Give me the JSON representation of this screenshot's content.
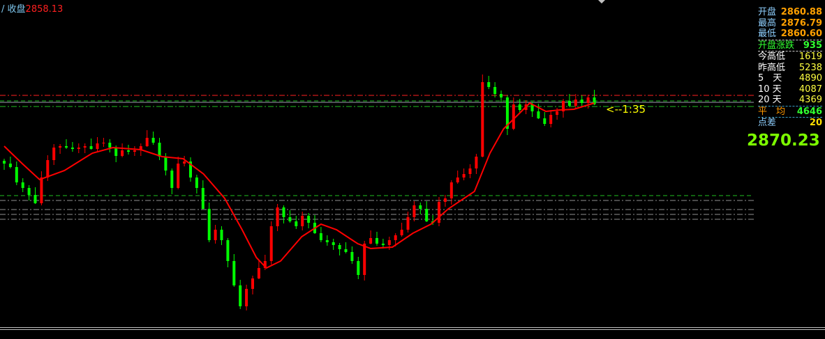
{
  "header": {
    "prefix": "/",
    "label": "收盘",
    "value": "2858.13"
  },
  "panel": {
    "open": {
      "label": "开盘",
      "value": "2860.88"
    },
    "high": {
      "label": "最高",
      "value": "2876.79"
    },
    "low": {
      "label": "最低",
      "value": "2860.60"
    },
    "open_change": {
      "label": "开盘涨跌",
      "value": "935"
    },
    "today_range": {
      "label": "今高低",
      "value": "1619"
    },
    "yest_range": {
      "label": "昨高低",
      "value": "5238"
    },
    "d5": {
      "label": "5　天",
      "value": "4890"
    },
    "d10": {
      "label": "10 天",
      "value": "4087"
    },
    "d20": {
      "label": "20 天",
      "value": "4369"
    },
    "avg": {
      "label": "平　均",
      "value": "4646"
    },
    "points": {
      "label": "点差",
      "value": "20"
    },
    "current": "2870.23"
  },
  "annotation": "<--1:35",
  "chart_data": {
    "type": "candlestick",
    "colors": {
      "up": "#ff0000",
      "down": "#00ff00",
      "ma": "#ff0000",
      "bg": "#000000"
    },
    "close": [
      2868.25,
      2868.0,
      2866.9,
      2866.5,
      2866.0,
      2865.4,
      2867.25,
      2868.5,
      2869.4,
      2869.5,
      2869.4,
      2869.3,
      2869.4,
      2869.5,
      2869.3,
      2869.7,
      2869.75,
      2869.4,
      2868.8,
      2869.2,
      2869.1,
      2869.2,
      2869.5,
      2870.1,
      2869.75,
      2868.75,
      2867.75,
      2866.5,
      2868.25,
      2868.4,
      2867.25,
      2866.5,
      2865.0,
      2862.75,
      2863.5,
      2862.75,
      2861.25,
      2859.5,
      2858.0,
      2859.25,
      2860.0,
      2860.75,
      2861.25,
      2863.75,
      2865.1,
      2864.4,
      2864.1,
      2863.75,
      2864.5,
      2864.0,
      2863.25,
      2862.75,
      2862.6,
      2862.4,
      2862.1,
      2861.9,
      2861.25,
      2860.25,
      2862.5,
      2862.9,
      2862.5,
      2862.4,
      2862.75,
      2863.1,
      2863.5,
      2864.4,
      2865.25,
      2865.0,
      2864.1,
      2864.0,
      2865.5,
      2865.75,
      2866.9,
      2867.25,
      2867.5,
      2867.9,
      2868.75,
      2874.1,
      2873.75,
      2873.25,
      2873.0,
      2870.75,
      2872.5,
      2872.1,
      2872.5,
      2872.0,
      2871.5,
      2871.1,
      2871.75,
      2872.0,
      2872.75,
      2872.4,
      2872.85,
      2872.6,
      2873.0,
      2872.5
    ],
    "ma": [
      [
        0,
        2869.5
      ],
      [
        2.9,
        2868.25
      ],
      [
        5.7,
        2867.1
      ],
      [
        9.7,
        2867.75
      ],
      [
        14.2,
        2869.0
      ],
      [
        17.5,
        2869.4
      ],
      [
        22,
        2869.25
      ],
      [
        25.4,
        2868.75
      ],
      [
        28.8,
        2868.6
      ],
      [
        32.1,
        2867.5
      ],
      [
        35.5,
        2865.75
      ],
      [
        38.3,
        2863.5
      ],
      [
        40.6,
        2861.5
      ],
      [
        42.2,
        2860.75
      ],
      [
        44.5,
        2861.25
      ],
      [
        47.9,
        2863.0
      ],
      [
        51,
        2863.9
      ],
      [
        53.5,
        2863.5
      ],
      [
        56.9,
        2862.5
      ],
      [
        59,
        2862.15
      ],
      [
        62.5,
        2862.25
      ],
      [
        65.8,
        2863.25
      ],
      [
        68.7,
        2863.9
      ],
      [
        71.5,
        2865.0
      ],
      [
        75.7,
        2866.25
      ],
      [
        78.2,
        2869.0
      ],
      [
        80.4,
        2870.75
      ],
      [
        82.7,
        2871.75
      ],
      [
        84.6,
        2872.6
      ],
      [
        87.2,
        2872.0
      ],
      [
        89.4,
        2872.1
      ],
      [
        91.7,
        2872.15
      ],
      [
        95,
        2872.6
      ]
    ],
    "levels": [
      {
        "price": 2873.15,
        "color": "#ff2020",
        "style": "dashdot"
      },
      {
        "price": 2872.75,
        "color": "#20c020",
        "style": "dash"
      },
      {
        "price": 2872.65,
        "color": "#a0a0b0",
        "style": "solid"
      },
      {
        "price": 2872.35,
        "color": "#20c020",
        "style": "dashdot"
      },
      {
        "price": 2865.95,
        "color": "#20c020",
        "style": "dash"
      },
      {
        "price": 2865.6,
        "color": "#909090",
        "style": "dashdot"
      },
      {
        "price": 2864.95,
        "color": "#909090",
        "style": "dashdot"
      },
      {
        "price": 2864.6,
        "color": "#909090",
        "style": "dashdot"
      },
      {
        "price": 2864.25,
        "color": "#909090",
        "style": "dashdot"
      }
    ]
  }
}
